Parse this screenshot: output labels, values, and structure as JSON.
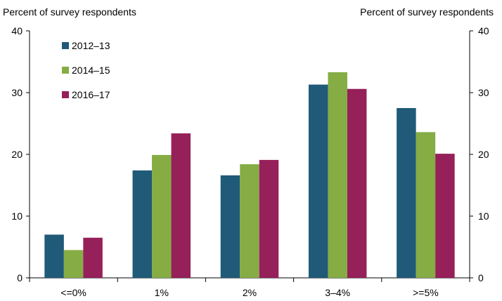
{
  "chart_data": {
    "type": "bar",
    "ylabel_left": "Percent of survey respondents",
    "ylabel_right": "Percent of survey respondents",
    "categories": [
      "<=0%",
      "1%",
      "2%",
      "3–4%",
      ">=5%"
    ],
    "series": [
      {
        "name": "2012–13",
        "color": "#1f5a78",
        "values": [
          7.0,
          17.4,
          16.6,
          31.3,
          27.5
        ]
      },
      {
        "name": "2014–15",
        "color": "#86ac44",
        "values": [
          4.5,
          19.9,
          18.4,
          33.3,
          23.6
        ]
      },
      {
        "name": "2016–17",
        "color": "#962059",
        "values": [
          6.5,
          23.4,
          19.1,
          30.6,
          20.1
        ]
      }
    ],
    "ylim": [
      0,
      40
    ],
    "yticks": [
      0,
      10,
      20,
      30,
      40
    ],
    "grid": false,
    "legend_position": "top-left"
  }
}
